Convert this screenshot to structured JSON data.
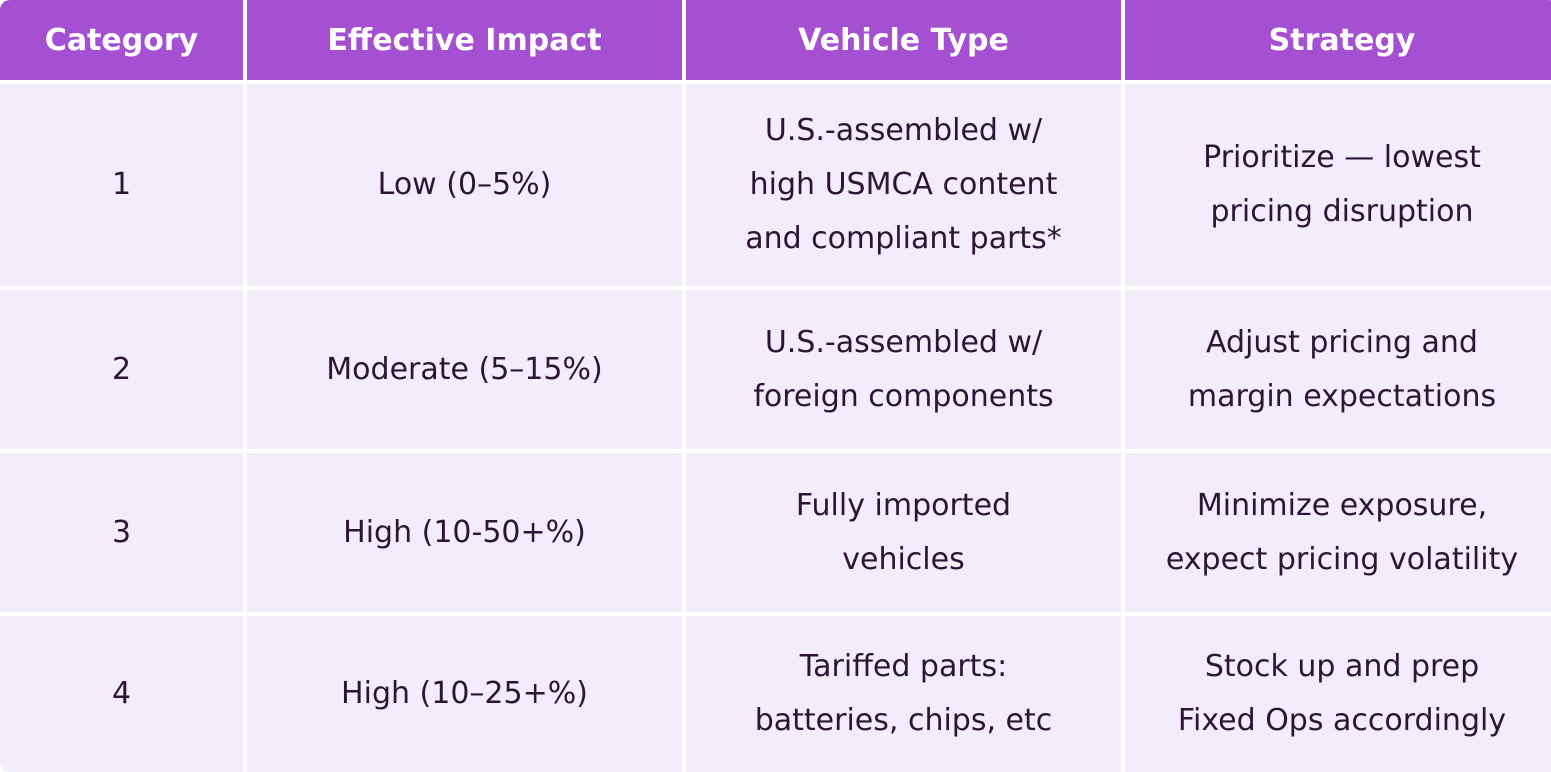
{
  "header": {
    "category": "Category",
    "effective_impact": "Effective Impact",
    "vehicle_type": "Vehicle Type",
    "strategy": "Strategy"
  },
  "rows": [
    {
      "category": "1",
      "impact": "Low (0–5%)",
      "vehicle": [
        "U.S.-assembled w/",
        "high USMCA content",
        "and compliant parts*"
      ],
      "strategy": [
        "Prioritize — lowest",
        "pricing disruption"
      ]
    },
    {
      "category": "2",
      "impact": "Moderate (5–15%)",
      "vehicle": [
        "U.S.-assembled w/",
        "foreign components"
      ],
      "strategy": [
        "Adjust pricing and",
        "margin expectations"
      ]
    },
    {
      "category": "3",
      "impact": "High (10-50+%)",
      "vehicle": [
        "Fully imported",
        "vehicles"
      ],
      "strategy": [
        "Minimize exposure,",
        "expect pricing volatility"
      ]
    },
    {
      "category": "4",
      "impact": "High (10–25+%)",
      "vehicle": [
        "Tariffed parts:",
        "batteries, chips, etc"
      ],
      "strategy": [
        "Stock up and prep",
        "Fixed Ops accordingly"
      ]
    }
  ],
  "colors": {
    "header_bg": "#a54fd3",
    "row_bg": "#f3ecfb",
    "header_text": "#ffffff",
    "body_text": "#2c1536"
  }
}
